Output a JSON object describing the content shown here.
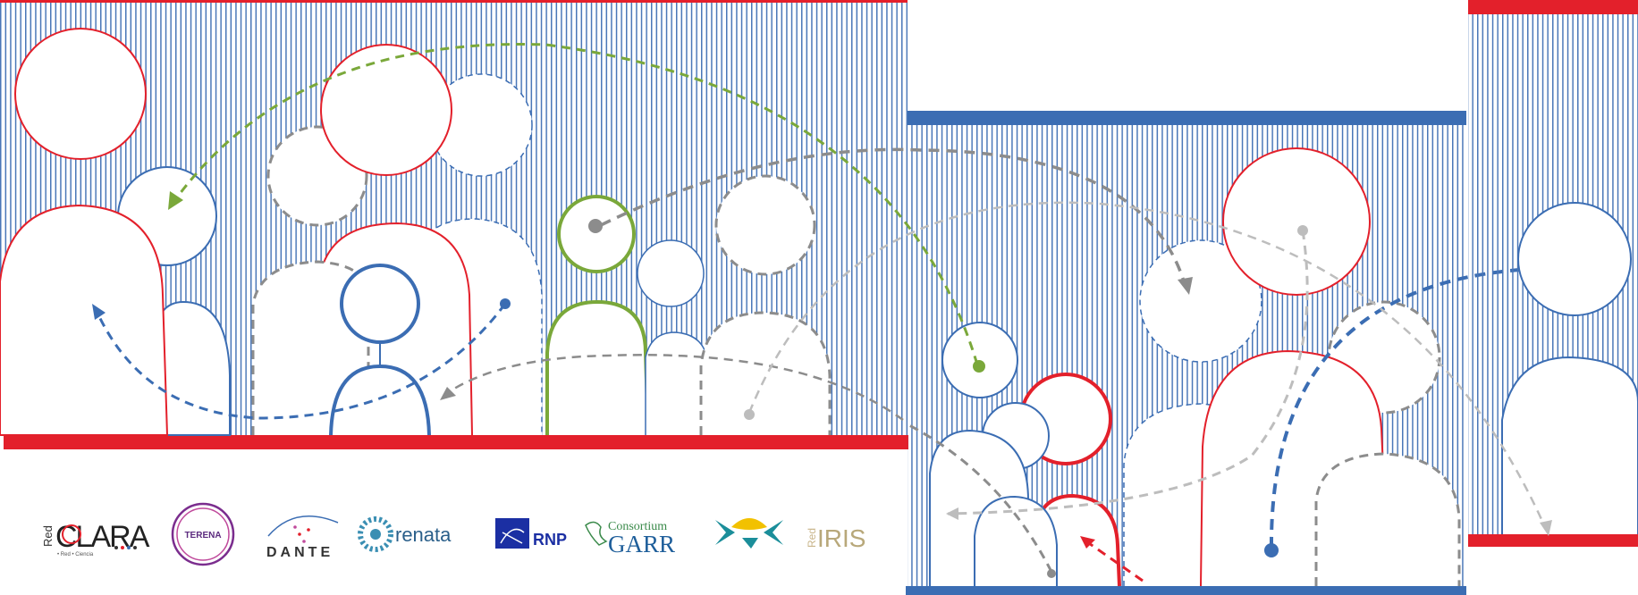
{
  "colors": {
    "red": "#e3202b",
    "blue": "#3b6db3",
    "stripe": "#4a77b8",
    "green": "#7aa83a",
    "gray": "#8c8c8c",
    "lightgray": "#bdbdbd"
  },
  "logos": {
    "redclara": {
      "prefix": "Red",
      "name": "CLARA",
      "sub": "• Red • Ciencia"
    },
    "terena": {
      "name": "TERENA"
    },
    "dante": {
      "name": "DANTE"
    },
    "renata": {
      "name": "renata"
    },
    "rnp": {
      "name": "RNP"
    },
    "garr": {
      "top": "Consortium",
      "name": "GARR"
    },
    "rediris": {
      "prefix": "Red",
      "name": "IRIS"
    }
  }
}
